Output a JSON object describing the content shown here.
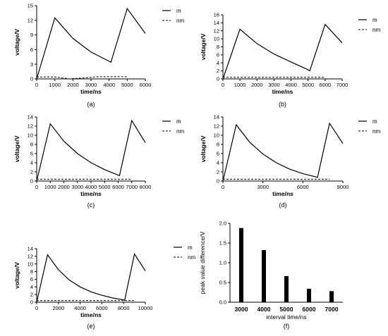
{
  "chart_data": [
    {
      "type": "line",
      "caption": "(a)",
      "xlabel": "time/ns",
      "ylabel": "voltage/V",
      "xlim": [
        0,
        6000
      ],
      "ylim": [
        0,
        15
      ],
      "xticks": [
        0,
        1000,
        2000,
        3000,
        4000,
        5000,
        6000
      ],
      "yticks": [
        0,
        3,
        6,
        9,
        12,
        15
      ],
      "legend_position": "top-right",
      "series": [
        {
          "name": "m",
          "style": "solid",
          "x": [
            0,
            1000,
            2000,
            3000,
            4000,
            4100,
            5000,
            6000
          ],
          "y": [
            0,
            12.5,
            8.3,
            5.5,
            3.6,
            3.4,
            14.4,
            9.3
          ]
        },
        {
          "name": "nm",
          "style": "dashed",
          "x": [
            0,
            1000,
            1800,
            2600,
            3400,
            4100,
            5000
          ],
          "y": [
            0.4,
            0.4,
            0.0,
            0.2,
            0.45,
            0.45,
            0.45
          ]
        }
      ]
    },
    {
      "type": "line",
      "caption": "(b)",
      "xlabel": "time/ns",
      "ylabel": "voltage/V",
      "xlim": [
        0,
        7000
      ],
      "ylim": [
        0,
        16
      ],
      "xticks": [
        0,
        1000,
        2000,
        3000,
        4000,
        5000,
        6000,
        7000
      ],
      "yticks": [
        0,
        2,
        4,
        6,
        8,
        10,
        12,
        14,
        16
      ],
      "legend_position": "top-right",
      "series": [
        {
          "name": "m",
          "style": "solid",
          "x": [
            0,
            1000,
            2000,
            3000,
            4000,
            5000,
            5100,
            6000,
            7000
          ],
          "y": [
            0,
            12.4,
            8.8,
            6.2,
            4.2,
            2.3,
            2.0,
            13.6,
            9.0
          ]
        },
        {
          "name": "nm",
          "style": "dashed",
          "x": [
            0,
            1000,
            5100,
            6000
          ],
          "y": [
            0.4,
            0.4,
            0.4,
            0.4
          ]
        }
      ]
    },
    {
      "type": "line",
      "caption": "(c)",
      "xlabel": "time/ns",
      "ylabel": "voltage/V",
      "xlim": [
        0,
        8000
      ],
      "ylim": [
        0,
        14
      ],
      "xticks": [
        0,
        1000,
        2000,
        3000,
        4000,
        5000,
        6000,
        7000,
        8000
      ],
      "yticks": [
        0,
        2,
        4,
        6,
        8,
        10,
        12,
        14
      ],
      "legend_position": "top-right",
      "series": [
        {
          "name": "m",
          "style": "solid",
          "x": [
            0,
            1000,
            2000,
            3000,
            4000,
            5000,
            6000,
            6100,
            7000,
            8000
          ],
          "y": [
            0,
            12.5,
            8.7,
            6.0,
            4.0,
            2.5,
            1.3,
            1.2,
            13.2,
            8.4
          ]
        },
        {
          "name": "nm",
          "style": "dashed",
          "x": [
            0,
            1000,
            6100,
            7000
          ],
          "y": [
            0.4,
            0.4,
            0.4,
            0.4
          ]
        }
      ]
    },
    {
      "type": "line",
      "caption": "(d)",
      "xlabel": "time/ns",
      "ylabel": "voltage/V",
      "xlim": [
        0,
        9000
      ],
      "ylim": [
        0,
        14
      ],
      "xticks": [
        0,
        3000,
        6000,
        9000
      ],
      "yticks": [
        0,
        2,
        4,
        6,
        8,
        10,
        12,
        14
      ],
      "legend_position": "top-right",
      "series": [
        {
          "name": "m",
          "style": "solid",
          "x": [
            0,
            1000,
            2000,
            3000,
            4000,
            5000,
            6000,
            7000,
            7100,
            8000,
            9000
          ],
          "y": [
            0,
            12.3,
            8.5,
            5.9,
            4.0,
            2.6,
            1.6,
            0.9,
            0.8,
            12.6,
            8.2
          ]
        },
        {
          "name": "nm",
          "style": "dashed",
          "x": [
            0,
            1000,
            7100,
            8000
          ],
          "y": [
            0.4,
            0.4,
            0.4,
            0.4
          ]
        }
      ]
    },
    {
      "type": "line",
      "caption": "(e)",
      "xlabel": "time/ns",
      "ylabel": "voltage/V",
      "xlim": [
        0,
        10000
      ],
      "ylim": [
        0,
        14
      ],
      "xticks": [
        0,
        2000,
        4000,
        6000,
        8000,
        10000
      ],
      "yticks": [
        0,
        2,
        4,
        6,
        8,
        10,
        12,
        14
      ],
      "legend_position": "top-right",
      "series": [
        {
          "name": "m",
          "style": "solid",
          "x": [
            0,
            1000,
            2000,
            3000,
            4000,
            5000,
            6000,
            7000,
            8000,
            8100,
            9000,
            10000
          ],
          "y": [
            0,
            12.4,
            8.5,
            5.8,
            4.0,
            2.7,
            1.8,
            1.1,
            0.6,
            0.5,
            12.6,
            8.2
          ]
        },
        {
          "name": "nm",
          "style": "dashed",
          "x": [
            0,
            1000,
            8100,
            9000
          ],
          "y": [
            0.4,
            0.4,
            0.4,
            0.4
          ]
        }
      ]
    },
    {
      "type": "bar",
      "caption": "(f)",
      "xlabel": "interval time/ns",
      "ylabel": "peak value difference/V",
      "categories": [
        "3000",
        "4000",
        "5000",
        "6000",
        "7000"
      ],
      "values": [
        1.88,
        1.32,
        0.66,
        0.34,
        0.28
      ],
      "ylim": [
        0,
        2.0
      ],
      "yticks": [
        "0.0",
        "0.5",
        "1.0",
        "1.5",
        "2.0"
      ]
    }
  ]
}
